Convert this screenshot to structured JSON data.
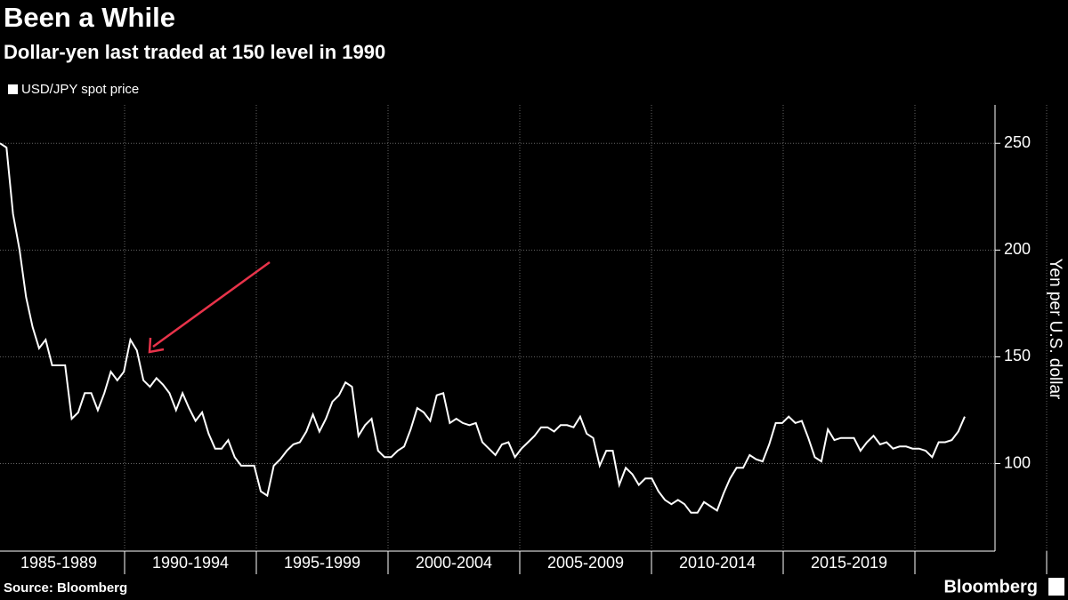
{
  "chart_data": {
    "type": "line",
    "title": "Been a While",
    "subtitle": "Dollar-yen last traded at 150 level in 1990",
    "y_axis_label": "Yen per U.S. dollar",
    "source": "Source: Bloomberg",
    "brand": "Bloomberg",
    "period_labels": [
      "1985-1989",
      "1990-1994",
      "1995-1999",
      "2000-2004",
      "2005-2009",
      "2010-2014",
      "2015-2019"
    ],
    "ylim": [
      59,
      268
    ],
    "yticks": [
      100,
      150,
      200,
      250
    ],
    "grid": true,
    "series": [
      {
        "name": "USD/JPY spot price",
        "color": "#ffffff",
        "values": [
          250,
          248,
          217,
          200,
          178,
          164,
          154,
          158,
          146,
          146,
          146,
          121,
          124,
          133,
          133,
          125,
          133,
          143,
          139,
          143,
          158,
          153,
          139,
          136,
          140,
          137,
          133,
          125,
          133,
          126,
          120,
          124,
          114,
          107,
          107,
          111,
          103,
          99,
          99,
          99,
          87,
          85,
          99,
          102,
          106,
          109,
          110,
          115,
          123,
          115,
          121,
          129,
          132,
          138,
          136,
          113,
          118,
          121,
          106,
          103,
          103,
          106,
          108,
          116,
          126,
          124,
          120,
          132,
          133,
          119,
          121,
          119,
          118,
          119,
          110,
          107,
          104,
          109,
          110,
          103,
          107,
          110,
          113,
          117,
          117,
          115,
          118,
          118,
          117,
          122,
          114,
          112,
          99,
          106,
          106,
          90,
          98,
          95,
          90,
          93,
          93,
          87,
          83,
          81,
          83,
          81,
          77,
          77,
          82,
          80,
          78,
          86,
          93,
          98,
          98,
          104,
          102,
          101,
          109,
          119,
          119,
          122,
          119,
          120,
          112,
          103,
          101,
          116,
          111,
          112,
          112,
          112,
          106,
          110,
          113,
          109,
          110,
          107,
          108,
          108,
          107,
          107,
          106,
          103,
          110,
          110,
          111,
          115,
          122
        ]
      }
    ]
  }
}
